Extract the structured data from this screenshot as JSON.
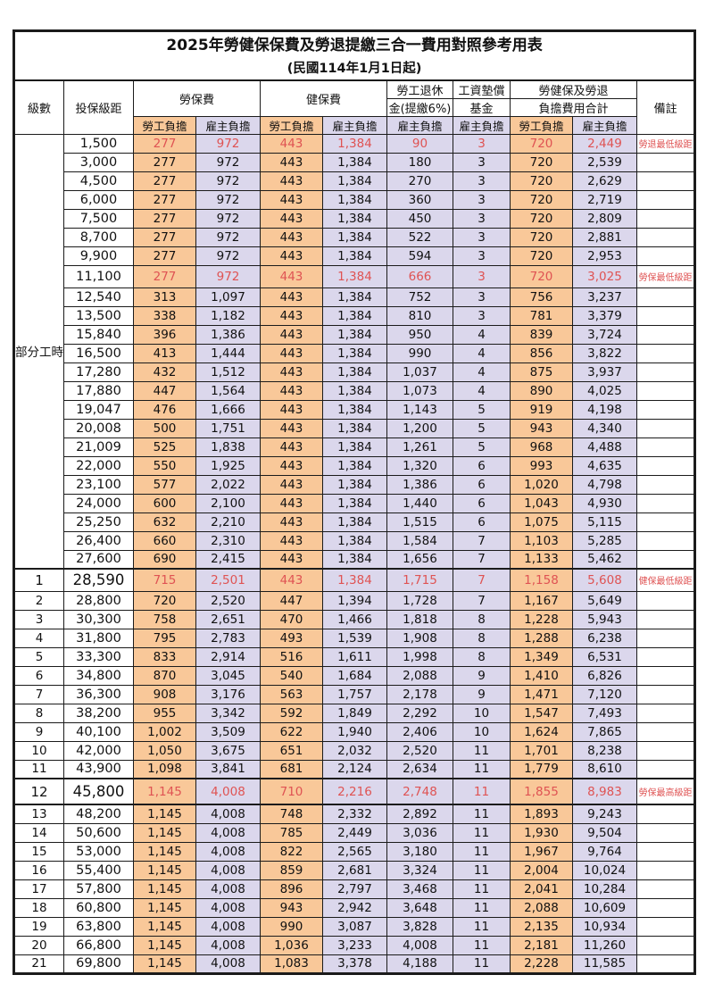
{
  "title": "2025年勞健保保費及勞退提繳三合一費用對照參考用表",
  "subtitle": "(民國114年1月1日起)",
  "colors": {
    "employee_bg": "#F9C899",
    "employer_bg": "#DBD7EC",
    "highlight_text": "#DF5353"
  },
  "header": {
    "level": "級數",
    "bracket": "投保級距",
    "labor_insurance": "勞保費",
    "health_insurance": "健保費",
    "pension_line1": "勞工退休",
    "pension_line2": "金(提繳6%)",
    "wage_fund_line1": "工資墊償",
    "wage_fund_line2": "基金",
    "total_line1": "勞健保及勞退",
    "total_line2": "負擔費用合計",
    "employee_share": "勞工負擔",
    "employer_share": "雇主負擔",
    "notes": "備註"
  },
  "part_time_label": "部分工時",
  "rows": [
    {
      "level": "",
      "bracket": "1,500",
      "values": [
        "277",
        "972",
        "443",
        "1,384",
        "90",
        "3",
        "720",
        "2,449"
      ],
      "note": "勞退最低級距",
      "highlight": true
    },
    {
      "level": "",
      "bracket": "3,000",
      "values": [
        "277",
        "972",
        "443",
        "1,384",
        "180",
        "3",
        "720",
        "2,539"
      ],
      "note": "",
      "highlight": false
    },
    {
      "level": "",
      "bracket": "4,500",
      "values": [
        "277",
        "972",
        "443",
        "1,384",
        "270",
        "3",
        "720",
        "2,629"
      ],
      "note": "",
      "highlight": false
    },
    {
      "level": "",
      "bracket": "6,000",
      "values": [
        "277",
        "972",
        "443",
        "1,384",
        "360",
        "3",
        "720",
        "2,719"
      ],
      "note": "",
      "highlight": false
    },
    {
      "level": "",
      "bracket": "7,500",
      "values": [
        "277",
        "972",
        "443",
        "1,384",
        "450",
        "3",
        "720",
        "2,809"
      ],
      "note": "",
      "highlight": false
    },
    {
      "level": "",
      "bracket": "8,700",
      "values": [
        "277",
        "972",
        "443",
        "1,384",
        "522",
        "3",
        "720",
        "2,881"
      ],
      "note": "",
      "highlight": false
    },
    {
      "level": "",
      "bracket": "9,900",
      "values": [
        "277",
        "972",
        "443",
        "1,384",
        "594",
        "3",
        "720",
        "2,953"
      ],
      "note": "",
      "highlight": false
    },
    {
      "level": "",
      "bracket": "11,100",
      "values": [
        "277",
        "972",
        "443",
        "1,384",
        "666",
        "3",
        "720",
        "3,025"
      ],
      "note": "勞保最低級距",
      "highlight": true
    },
    {
      "level": "",
      "bracket": "12,540",
      "values": [
        "313",
        "1,097",
        "443",
        "1,384",
        "752",
        "3",
        "756",
        "3,237"
      ],
      "note": "",
      "highlight": false
    },
    {
      "level": "",
      "bracket": "13,500",
      "values": [
        "338",
        "1,182",
        "443",
        "1,384",
        "810",
        "3",
        "781",
        "3,379"
      ],
      "note": "",
      "highlight": false
    },
    {
      "level": "",
      "bracket": "15,840",
      "values": [
        "396",
        "1,386",
        "443",
        "1,384",
        "950",
        "4",
        "839",
        "3,724"
      ],
      "note": "",
      "highlight": false
    },
    {
      "level": "",
      "bracket": "16,500",
      "values": [
        "413",
        "1,444",
        "443",
        "1,384",
        "990",
        "4",
        "856",
        "3,822"
      ],
      "note": "",
      "highlight": false
    },
    {
      "level": "",
      "bracket": "17,280",
      "values": [
        "432",
        "1,512",
        "443",
        "1,384",
        "1,037",
        "4",
        "875",
        "3,937"
      ],
      "note": "",
      "highlight": false
    },
    {
      "level": "",
      "bracket": "17,880",
      "values": [
        "447",
        "1,564",
        "443",
        "1,384",
        "1,073",
        "4",
        "890",
        "4,025"
      ],
      "note": "",
      "highlight": false
    },
    {
      "level": "",
      "bracket": "19,047",
      "values": [
        "476",
        "1,666",
        "443",
        "1,384",
        "1,143",
        "5",
        "919",
        "4,198"
      ],
      "note": "",
      "highlight": false
    },
    {
      "level": "",
      "bracket": "20,008",
      "values": [
        "500",
        "1,751",
        "443",
        "1,384",
        "1,200",
        "5",
        "943",
        "4,340"
      ],
      "note": "",
      "highlight": false
    },
    {
      "level": "",
      "bracket": "21,009",
      "values": [
        "525",
        "1,838",
        "443",
        "1,384",
        "1,261",
        "5",
        "968",
        "4,488"
      ],
      "note": "",
      "highlight": false
    },
    {
      "level": "",
      "bracket": "22,000",
      "values": [
        "550",
        "1,925",
        "443",
        "1,384",
        "1,320",
        "6",
        "993",
        "4,635"
      ],
      "note": "",
      "highlight": false
    },
    {
      "level": "",
      "bracket": "23,100",
      "values": [
        "577",
        "2,022",
        "443",
        "1,384",
        "1,386",
        "6",
        "1,020",
        "4,798"
      ],
      "note": "",
      "highlight": false
    },
    {
      "level": "",
      "bracket": "24,000",
      "values": [
        "600",
        "2,100",
        "443",
        "1,384",
        "1,440",
        "6",
        "1,043",
        "4,930"
      ],
      "note": "",
      "highlight": false
    },
    {
      "level": "",
      "bracket": "25,250",
      "values": [
        "632",
        "2,210",
        "443",
        "1,384",
        "1,515",
        "6",
        "1,075",
        "5,115"
      ],
      "note": "",
      "highlight": false
    },
    {
      "level": "",
      "bracket": "26,400",
      "values": [
        "660",
        "2,310",
        "443",
        "1,384",
        "1,584",
        "7",
        "1,103",
        "5,285"
      ],
      "note": "",
      "highlight": false
    },
    {
      "level": "",
      "bracket": "27,600",
      "values": [
        "690",
        "2,415",
        "443",
        "1,384",
        "1,656",
        "7",
        "1,133",
        "5,462"
      ],
      "note": "",
      "highlight": false
    },
    {
      "level": "1",
      "bracket": "28,590",
      "values": [
        "715",
        "2,501",
        "443",
        "1,384",
        "1,715",
        "7",
        "1,158",
        "5,608"
      ],
      "note": "健保最低級距",
      "highlight": true
    },
    {
      "level": "2",
      "bracket": "28,800",
      "values": [
        "720",
        "2,520",
        "447",
        "1,394",
        "1,728",
        "7",
        "1,167",
        "5,649"
      ],
      "note": "",
      "highlight": false
    },
    {
      "level": "3",
      "bracket": "30,300",
      "values": [
        "758",
        "2,651",
        "470",
        "1,466",
        "1,818",
        "8",
        "1,228",
        "5,943"
      ],
      "note": "",
      "highlight": false
    },
    {
      "level": "4",
      "bracket": "31,800",
      "values": [
        "795",
        "2,783",
        "493",
        "1,539",
        "1,908",
        "8",
        "1,288",
        "6,238"
      ],
      "note": "",
      "highlight": false
    },
    {
      "level": "5",
      "bracket": "33,300",
      "values": [
        "833",
        "2,914",
        "516",
        "1,611",
        "1,998",
        "8",
        "1,349",
        "6,531"
      ],
      "note": "",
      "highlight": false
    },
    {
      "level": "6",
      "bracket": "34,800",
      "values": [
        "870",
        "3,045",
        "540",
        "1,684",
        "2,088",
        "9",
        "1,410",
        "6,826"
      ],
      "note": "",
      "highlight": false
    },
    {
      "level": "7",
      "bracket": "36,300",
      "values": [
        "908",
        "3,176",
        "563",
        "1,757",
        "2,178",
        "9",
        "1,471",
        "7,120"
      ],
      "note": "",
      "highlight": false
    },
    {
      "level": "8",
      "bracket": "38,200",
      "values": [
        "955",
        "3,342",
        "592",
        "1,849",
        "2,292",
        "10",
        "1,547",
        "7,493"
      ],
      "note": "",
      "highlight": false
    },
    {
      "level": "9",
      "bracket": "40,100",
      "values": [
        "1,002",
        "3,509",
        "622",
        "1,940",
        "2,406",
        "10",
        "1,624",
        "7,865"
      ],
      "note": "",
      "highlight": false
    },
    {
      "level": "10",
      "bracket": "42,000",
      "values": [
        "1,050",
        "3,675",
        "651",
        "2,032",
        "2,520",
        "11",
        "1,701",
        "8,238"
      ],
      "note": "",
      "highlight": false
    },
    {
      "level": "11",
      "bracket": "43,900",
      "values": [
        "1,098",
        "3,841",
        "681",
        "2,124",
        "2,634",
        "11",
        "1,779",
        "8,610"
      ],
      "note": "",
      "highlight": false
    },
    {
      "level": "12",
      "bracket": "45,800",
      "values": [
        "1,145",
        "4,008",
        "710",
        "2,216",
        "2,748",
        "11",
        "1,855",
        "8,983"
      ],
      "note": "勞保最高級距",
      "highlight": true
    },
    {
      "level": "13",
      "bracket": "48,200",
      "values": [
        "1,145",
        "4,008",
        "748",
        "2,332",
        "2,892",
        "11",
        "1,893",
        "9,243"
      ],
      "note": "",
      "highlight": false
    },
    {
      "level": "14",
      "bracket": "50,600",
      "values": [
        "1,145",
        "4,008",
        "785",
        "2,449",
        "3,036",
        "11",
        "1,930",
        "9,504"
      ],
      "note": "",
      "highlight": false
    },
    {
      "level": "15",
      "bracket": "53,000",
      "values": [
        "1,145",
        "4,008",
        "822",
        "2,565",
        "3,180",
        "11",
        "1,967",
        "9,764"
      ],
      "note": "",
      "highlight": false
    },
    {
      "level": "16",
      "bracket": "55,400",
      "values": [
        "1,145",
        "4,008",
        "859",
        "2,681",
        "3,324",
        "11",
        "2,004",
        "10,024"
      ],
      "note": "",
      "highlight": false
    },
    {
      "level": "17",
      "bracket": "57,800",
      "values": [
        "1,145",
        "4,008",
        "896",
        "2,797",
        "3,468",
        "11",
        "2,041",
        "10,284"
      ],
      "note": "",
      "highlight": false
    },
    {
      "level": "18",
      "bracket": "60,800",
      "values": [
        "1,145",
        "4,008",
        "943",
        "2,942",
        "3,648",
        "11",
        "2,088",
        "10,609"
      ],
      "note": "",
      "highlight": false
    },
    {
      "level": "19",
      "bracket": "63,800",
      "values": [
        "1,145",
        "4,008",
        "990",
        "3,087",
        "3,828",
        "11",
        "2,135",
        "10,934"
      ],
      "note": "",
      "highlight": false
    },
    {
      "level": "20",
      "bracket": "66,800",
      "values": [
        "1,145",
        "4,008",
        "1,036",
        "3,233",
        "4,008",
        "11",
        "2,181",
        "11,260"
      ],
      "note": "",
      "highlight": false
    },
    {
      "level": "21",
      "bracket": "69,800",
      "values": [
        "1,145",
        "4,008",
        "1,083",
        "3,378",
        "4,188",
        "11",
        "2,228",
        "11,585"
      ],
      "note": "",
      "highlight": false
    }
  ]
}
